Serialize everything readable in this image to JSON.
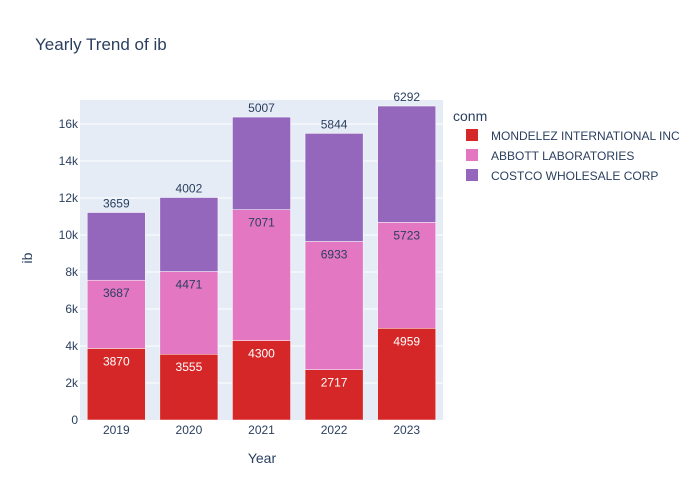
{
  "chart_data": {
    "type": "bar",
    "barmode": "stack",
    "title": "Yearly Trend of ib",
    "xlabel": "Year",
    "ylabel": "ib",
    "categories": [
      "2019",
      "2020",
      "2021",
      "2022",
      "2023"
    ],
    "yticks": [
      0,
      2000,
      4000,
      6000,
      8000,
      10000,
      12000,
      14000,
      16000
    ],
    "ytick_labels": [
      "0",
      "2k",
      "4k",
      "6k",
      "8k",
      "10k",
      "12k",
      "14k",
      "16k"
    ],
    "ylim": [
      0,
      17300
    ],
    "grid": true,
    "legend_title": "conm",
    "legend_position": "right",
    "series": [
      {
        "name": "MONDELEZ INTERNATIONAL INC",
        "color": "#d62728",
        "label_color": "#ffffff",
        "values": [
          3870,
          3555,
          4300,
          2717,
          4959
        ]
      },
      {
        "name": "ABBOTT LABORATORIES",
        "color": "#e377c2",
        "label_color": "#2a3f5f",
        "values": [
          3687,
          4471,
          7071,
          6933,
          5723
        ]
      },
      {
        "name": "COSTCO WHOLESALE CORP",
        "color": "#9467bd",
        "label_color": "#2a3f5f",
        "values": [
          3659,
          4002,
          5007,
          5844,
          6292
        ]
      }
    ]
  }
}
